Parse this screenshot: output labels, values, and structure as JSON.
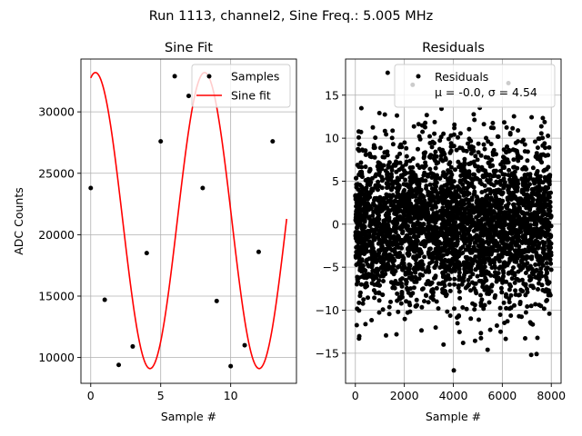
{
  "figure": {
    "title": "Run 1113, channel2, Sine Freq.: 5.005 MHz"
  },
  "chart_data": [
    {
      "type": "line",
      "title": "Sine Fit",
      "xlabel": "Sample #",
      "ylabel": "ADC Counts",
      "xlim": [
        -0.7,
        14.7
      ],
      "ylim": [
        7900,
        34300
      ],
      "xticks": [
        0,
        5,
        10
      ],
      "yticks": [
        10000,
        15000,
        20000,
        25000,
        30000
      ],
      "grid": true,
      "legend": {
        "placement": "top-right",
        "entries": [
          "Samples",
          "Sine fit"
        ]
      },
      "fit": {
        "offset": 21150,
        "amplitude": 12050,
        "period": 7.8,
        "phase": 1.3
      },
      "series": [
        {
          "name": "Samples",
          "kind": "scatter",
          "color": "#000000",
          "x": [
            0,
            1,
            2,
            3,
            4,
            5,
            6,
            7,
            8,
            9,
            10,
            11,
            12,
            13
          ],
          "y": [
            23800,
            14700,
            9400,
            10900,
            18500,
            27600,
            32900,
            31300,
            23800,
            14600,
            9300,
            11000,
            18600,
            27600
          ]
        },
        {
          "name": "Sine fit",
          "kind": "line",
          "color": "#ff0000",
          "x_range": [
            0,
            14
          ]
        }
      ]
    },
    {
      "type": "scatter",
      "title": "Residuals",
      "xlabel": "Sample #",
      "ylabel": "",
      "xlim": [
        -400,
        8400
      ],
      "ylim": [
        -18.5,
        19.2
      ],
      "xticks": [
        0,
        2000,
        4000,
        6000,
        8000
      ],
      "yticks": [
        -15,
        -10,
        -5,
        0,
        5,
        10,
        15
      ],
      "grid": true,
      "legend": {
        "placement": "top-right",
        "entries": [
          "Residuals",
          "μ = -0.0, σ = 4.54"
        ]
      },
      "series": [
        {
          "name": "Residuals",
          "color": "#000000",
          "n_samples": 8000,
          "mean": -0.0,
          "sigma": 4.54,
          "extremes": [
            [
              1320,
              17.6
            ],
            [
              2340,
              16.2
            ],
            [
              6250,
              16.4
            ],
            [
              4020,
              -17.0
            ],
            [
              7180,
              -15.2
            ],
            [
              7400,
              -15.1
            ],
            [
              3600,
              -14.0
            ],
            [
              4400,
              -13.8
            ],
            [
              5400,
              -14.6
            ],
            [
              150,
              -13.3
            ]
          ]
        }
      ]
    }
  ]
}
